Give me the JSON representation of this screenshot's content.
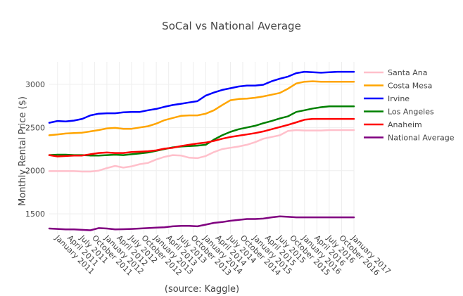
{
  "chart_data": {
    "type": "line",
    "title": "SoCal vs National Average",
    "xlabel": "(source: Kaggle)",
    "ylabel": "Monthly Rental Price ($)",
    "x": [
      "2010-11",
      "2011-01",
      "2011-03",
      "2011-05",
      "2011-07",
      "2011-09",
      "2011-11",
      "2012-01",
      "2012-03",
      "2012-05",
      "2012-07",
      "2012-09",
      "2012-11",
      "2013-01",
      "2013-03",
      "2013-05",
      "2013-07",
      "2013-09",
      "2013-11",
      "2014-01",
      "2014-03",
      "2014-05",
      "2014-07",
      "2014-09",
      "2014-11",
      "2015-01",
      "2015-03",
      "2015-05",
      "2015-07",
      "2015-09",
      "2015-11",
      "2016-01",
      "2016-03",
      "2016-05",
      "2016-07",
      "2016-09",
      "2016-11",
      "2017-01"
    ],
    "xticks": [
      "January 2011",
      "April 2011",
      "July 2011",
      "October 2011",
      "January 2012",
      "April 2012",
      "July 2012",
      "October 2012",
      "January 2013",
      "April 2013",
      "July 2013",
      "October 2013",
      "January 2014",
      "April 2014",
      "July 2014",
      "October 2014",
      "January 2015",
      "April 2015",
      "July 2015",
      "October 2015",
      "January 2016",
      "April 2016",
      "July 2016",
      "October 2016",
      "January 2017"
    ],
    "xtick_dates": [
      "2011-01",
      "2011-04",
      "2011-07",
      "2011-10",
      "2012-01",
      "2012-04",
      "2012-07",
      "2012-10",
      "2013-01",
      "2013-04",
      "2013-07",
      "2013-10",
      "2014-01",
      "2014-04",
      "2014-07",
      "2014-10",
      "2015-01",
      "2015-04",
      "2015-07",
      "2015-10",
      "2016-01",
      "2016-04",
      "2016-07",
      "2016-10",
      "2017-01"
    ],
    "yticks": [
      1500,
      2000,
      2500,
      3000
    ],
    "ylim": [
      1265,
      3260
    ],
    "grid": true,
    "legend_position": "right",
    "series": [
      {
        "name": "Santa Ana",
        "color": "#ffc0cb",
        "values": [
          1995,
          1995,
          1995,
          1995,
          1990,
          1990,
          2000,
          2030,
          2055,
          2035,
          2050,
          2075,
          2090,
          2130,
          2160,
          2180,
          2175,
          2150,
          2145,
          2170,
          2215,
          2250,
          2265,
          2280,
          2300,
          2330,
          2370,
          2390,
          2410,
          2460,
          2470,
          2465,
          2465,
          2465,
          2470,
          2470,
          2470,
          2470
        ]
      },
      {
        "name": "Costa Mesa",
        "color": "#ffa500",
        "values": [
          2410,
          2420,
          2430,
          2435,
          2440,
          2455,
          2470,
          2490,
          2495,
          2485,
          2485,
          2500,
          2515,
          2545,
          2585,
          2610,
          2635,
          2640,
          2640,
          2660,
          2700,
          2760,
          2815,
          2830,
          2835,
          2845,
          2860,
          2880,
          2900,
          2950,
          3010,
          3030,
          3035,
          3030,
          3030,
          3030,
          3030,
          3030
        ]
      },
      {
        "name": "Irvine",
        "color": "#0000ff",
        "values": [
          2555,
          2575,
          2570,
          2580,
          2600,
          2640,
          2660,
          2665,
          2665,
          2675,
          2680,
          2680,
          2700,
          2715,
          2740,
          2760,
          2775,
          2790,
          2805,
          2870,
          2905,
          2935,
          2955,
          2975,
          2985,
          2985,
          2995,
          3035,
          3065,
          3090,
          3130,
          3145,
          3140,
          3135,
          3140,
          3145,
          3145,
          3145
        ]
      },
      {
        "name": "Los Angeles",
        "color": "#008000",
        "values": [
          2180,
          2185,
          2185,
          2180,
          2180,
          2175,
          2175,
          2180,
          2185,
          2180,
          2190,
          2200,
          2210,
          2230,
          2250,
          2270,
          2280,
          2285,
          2290,
          2300,
          2360,
          2410,
          2450,
          2480,
          2500,
          2520,
          2550,
          2575,
          2605,
          2630,
          2680,
          2700,
          2720,
          2735,
          2745,
          2745,
          2745,
          2745
        ]
      },
      {
        "name": "Anaheim",
        "color": "#ff0000",
        "values": [
          2180,
          2165,
          2170,
          2175,
          2175,
          2190,
          2205,
          2210,
          2205,
          2205,
          2215,
          2220,
          2225,
          2235,
          2255,
          2265,
          2285,
          2300,
          2315,
          2325,
          2345,
          2370,
          2390,
          2405,
          2420,
          2435,
          2455,
          2480,
          2505,
          2530,
          2560,
          2590,
          2600,
          2600,
          2600,
          2600,
          2600,
          2600
        ]
      },
      {
        "name": "National Average",
        "color": "#800080",
        "values": [
          1330,
          1325,
          1320,
          1320,
          1315,
          1310,
          1335,
          1330,
          1320,
          1322,
          1325,
          1330,
          1335,
          1340,
          1345,
          1355,
          1360,
          1360,
          1355,
          1375,
          1395,
          1405,
          1420,
          1430,
          1440,
          1440,
          1445,
          1460,
          1470,
          1465,
          1460,
          1460,
          1460,
          1460,
          1460,
          1460,
          1460,
          1460
        ]
      }
    ]
  }
}
